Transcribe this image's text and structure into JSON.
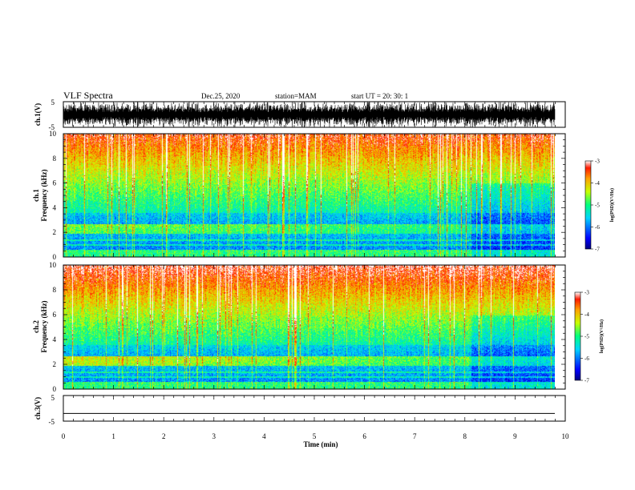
{
  "header": {
    "title": "VLF Spectra",
    "date": "Dec.25, 2020",
    "station": "station=MAM",
    "start": "start  UT  =   20: 30: 1"
  },
  "chart_data": [
    {
      "type": "line",
      "name_label": "ch.1(V)",
      "ylim": [
        -5,
        5
      ],
      "yticks": [
        "5",
        "-5"
      ],
      "xlim": [
        0,
        10
      ],
      "description_values": "dense impulsive waveform filling -5..5"
    },
    {
      "type": "heatmap",
      "channel": "ch.1",
      "ylabel": "Frequency  (kHz)",
      "ylim": [
        0,
        10
      ],
      "yticks": [
        "0",
        "2",
        "4",
        "6",
        "8",
        "10"
      ],
      "xlim": [
        0,
        9.8
      ],
      "colorbar": {
        "label": "log(PSD)(V²/Hz)",
        "range": [
          -7,
          -3
        ],
        "ticks": [
          "-3",
          "-4",
          "-5",
          "-6",
          "-7"
        ]
      },
      "band_kHz": [
        2.0,
        2.6
      ]
    },
    {
      "type": "heatmap",
      "channel": "ch.2",
      "ylabel": "Frequency  (kHz)",
      "ylim": [
        0,
        10
      ],
      "yticks": [
        "0",
        "2",
        "4",
        "6",
        "8",
        "10"
      ],
      "xlim": [
        0,
        9.8
      ],
      "colorbar": {
        "label": "log(PSD)(V²/Hz)",
        "range": [
          -7,
          -3
        ],
        "ticks": [
          "-3",
          "-4",
          "-5",
          "-6",
          "-7"
        ]
      },
      "band_kHz": [
        2.0,
        2.6
      ]
    },
    {
      "type": "line",
      "name_label": "ch.3(V)",
      "ylim": [
        -5,
        5
      ],
      "yticks": [
        "5",
        "-5"
      ],
      "x": [
        0,
        10
      ],
      "y": [
        -2,
        -2
      ]
    }
  ],
  "xaxis": {
    "label": "Time  (min)",
    "ticks": [
      "0",
      "1",
      "2",
      "3",
      "4",
      "5",
      "6",
      "7",
      "8",
      "9",
      "10"
    ]
  },
  "labels": {
    "ch1_name": "ch.1",
    "ch2_name": "ch.2"
  }
}
